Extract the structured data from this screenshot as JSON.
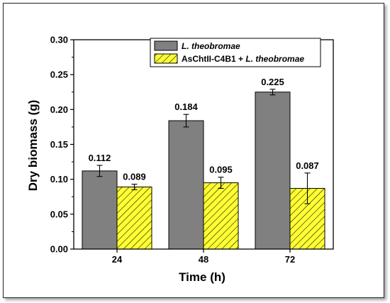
{
  "chart_data": {
    "type": "bar",
    "xlabel": "Time (h)",
    "ylabel": "Dry biomass (g)",
    "categories": [
      "24",
      "48",
      "72"
    ],
    "ylim": [
      0.0,
      0.3
    ],
    "yticks": [
      "0.00",
      "0.05",
      "0.10",
      "0.15",
      "0.20",
      "0.25",
      "0.30"
    ],
    "legend_position": "top-right",
    "series": [
      {
        "name_prefix": "",
        "name_italic": "L. theobromae",
        "color": "#808080",
        "pattern": "solid",
        "values": [
          0.112,
          0.184,
          0.225
        ],
        "labels": [
          "0.112",
          "0.184",
          "0.225"
        ],
        "errors": [
          0.008,
          0.009,
          0.004
        ]
      },
      {
        "name_prefix": "AsChtII-C4B1 + ",
        "name_italic": "L. theobromae",
        "color": "#ffff33",
        "pattern": "hatched",
        "values": [
          0.089,
          0.095,
          0.087
        ],
        "labels": [
          "0.089",
          "0.095",
          "0.087"
        ],
        "errors": [
          0.004,
          0.008,
          0.022
        ]
      }
    ]
  }
}
